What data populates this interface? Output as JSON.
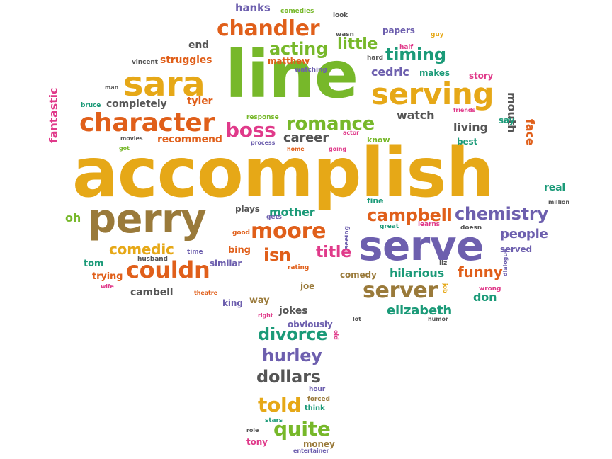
{
  "palette": {
    "gold": "#e6a817",
    "green": "#77b82a",
    "orange": "#e05f1a",
    "purple": "#6d5fae",
    "teal": "#1b9a78",
    "brown": "#9a7a3a",
    "pink": "#e03a8a",
    "gray": "#555555"
  },
  "words": [
    {
      "text": "accomplish",
      "color": "gold"
    },
    {
      "text": "line",
      "color": "green"
    },
    {
      "text": "serve",
      "color": "purple"
    },
    {
      "text": "perry",
      "color": "brown"
    },
    {
      "text": "sara",
      "color": "gold"
    },
    {
      "text": "serving",
      "color": "gold"
    },
    {
      "text": "character",
      "color": "orange"
    },
    {
      "text": "chandler",
      "color": "orange"
    },
    {
      "text": "couldn",
      "color": "orange"
    },
    {
      "text": "server",
      "color": "brown"
    },
    {
      "text": "moore",
      "color": "orange"
    },
    {
      "text": "romance",
      "color": "green"
    },
    {
      "text": "boss",
      "color": "pink"
    },
    {
      "text": "acting",
      "color": "green"
    },
    {
      "text": "timing",
      "color": "teal"
    },
    {
      "text": "chemistry",
      "color": "purple"
    },
    {
      "text": "campbell",
      "color": "orange"
    },
    {
      "text": "divorce",
      "color": "teal"
    },
    {
      "text": "hurley",
      "color": "purple"
    },
    {
      "text": "dollars",
      "color": "gray"
    },
    {
      "text": "quite",
      "color": "green"
    },
    {
      "text": "told",
      "color": "gold"
    },
    {
      "text": "little",
      "color": "green"
    },
    {
      "text": "comedic",
      "color": "gold"
    },
    {
      "text": "isn",
      "color": "orange"
    },
    {
      "text": "title",
      "color": "pink"
    },
    {
      "text": "funny",
      "color": "orange"
    },
    {
      "text": "people",
      "color": "purple"
    },
    {
      "text": "elizabeth",
      "color": "teal"
    },
    {
      "text": "hilarious",
      "color": "teal"
    },
    {
      "text": "cedric",
      "color": "purple"
    },
    {
      "text": "career",
      "color": "gray"
    },
    {
      "text": "watch",
      "color": "gray"
    },
    {
      "text": "living",
      "color": "gray"
    },
    {
      "text": "mouth",
      "color": "gray"
    },
    {
      "text": "face",
      "color": "orange"
    },
    {
      "text": "mother",
      "color": "teal"
    },
    {
      "text": "fantastic",
      "color": "pink"
    },
    {
      "text": "struggles",
      "color": "orange"
    },
    {
      "text": "completely",
      "color": "gray"
    },
    {
      "text": "tyler",
      "color": "orange"
    },
    {
      "text": "recommend",
      "color": "orange"
    },
    {
      "text": "hanks",
      "color": "purple"
    },
    {
      "text": "end",
      "color": "gray"
    },
    {
      "text": "matthew",
      "color": "orange"
    },
    {
      "text": "papers",
      "color": "purple"
    },
    {
      "text": "makes",
      "color": "teal"
    },
    {
      "text": "story",
      "color": "pink"
    },
    {
      "text": "say",
      "color": "teal"
    },
    {
      "text": "best",
      "color": "teal"
    },
    {
      "text": "real",
      "color": "teal"
    },
    {
      "text": "oh",
      "color": "green"
    },
    {
      "text": "plays",
      "color": "gray"
    },
    {
      "text": "bing",
      "color": "orange"
    },
    {
      "text": "tom",
      "color": "teal"
    },
    {
      "text": "trying",
      "color": "orange"
    },
    {
      "text": "cambell",
      "color": "gray"
    },
    {
      "text": "similar",
      "color": "purple"
    },
    {
      "text": "king",
      "color": "purple"
    },
    {
      "text": "way",
      "color": "brown"
    },
    {
      "text": "jokes",
      "color": "gray"
    },
    {
      "text": "obviously",
      "color": "purple"
    },
    {
      "text": "don",
      "color": "teal"
    },
    {
      "text": "comedy",
      "color": "brown"
    },
    {
      "text": "served",
      "color": "purple"
    },
    {
      "text": "joe",
      "color": "brown"
    },
    {
      "text": "tony",
      "color": "pink"
    },
    {
      "text": "money",
      "color": "brown"
    },
    {
      "text": "fine",
      "color": "teal"
    },
    {
      "text": "know",
      "color": "green"
    },
    {
      "text": "comedies",
      "color": "green"
    },
    {
      "text": "look",
      "color": "gray"
    },
    {
      "text": "wasn",
      "color": "gray"
    },
    {
      "text": "half",
      "color": "pink"
    },
    {
      "text": "guy",
      "color": "gold"
    },
    {
      "text": "hard",
      "color": "gray"
    },
    {
      "text": "watching",
      "color": "purple"
    },
    {
      "text": "vincent",
      "color": "gray"
    },
    {
      "text": "man",
      "color": "gray"
    },
    {
      "text": "bruce",
      "color": "teal"
    },
    {
      "text": "movies",
      "color": "gray"
    },
    {
      "text": "got",
      "color": "green"
    },
    {
      "text": "response",
      "color": "green"
    },
    {
      "text": "process",
      "color": "purple"
    },
    {
      "text": "actor",
      "color": "pink"
    },
    {
      "text": "home",
      "color": "orange"
    },
    {
      "text": "going",
      "color": "pink"
    },
    {
      "text": "friends",
      "color": "pink"
    },
    {
      "text": "million",
      "color": "gray"
    },
    {
      "text": "good",
      "color": "orange"
    },
    {
      "text": "gets",
      "color": "purple"
    },
    {
      "text": "time",
      "color": "purple"
    },
    {
      "text": "husband",
      "color": "gray"
    },
    {
      "text": "seeing",
      "color": "purple"
    },
    {
      "text": "great",
      "color": "teal"
    },
    {
      "text": "learns",
      "color": "pink"
    },
    {
      "text": "doesn",
      "color": "gray"
    },
    {
      "text": "rating",
      "color": "orange"
    },
    {
      "text": "liz",
      "color": "gray"
    },
    {
      "text": "dialogue",
      "color": "purple"
    },
    {
      "text": "job",
      "color": "gold"
    },
    {
      "text": "wrong",
      "color": "pink"
    },
    {
      "text": "wife",
      "color": "pink"
    },
    {
      "text": "theatre",
      "color": "orange"
    },
    {
      "text": "right",
      "color": "pink"
    },
    {
      "text": "lot",
      "color": "gray"
    },
    {
      "text": "humor",
      "color": "gray"
    },
    {
      "text": "old",
      "color": "pink"
    },
    {
      "text": "hour",
      "color": "purple"
    },
    {
      "text": "forced",
      "color": "brown"
    },
    {
      "text": "think",
      "color": "teal"
    },
    {
      "text": "stars",
      "color": "teal"
    },
    {
      "text": "role",
      "color": "gray"
    },
    {
      "text": "entertainer",
      "color": "purple"
    }
  ]
}
